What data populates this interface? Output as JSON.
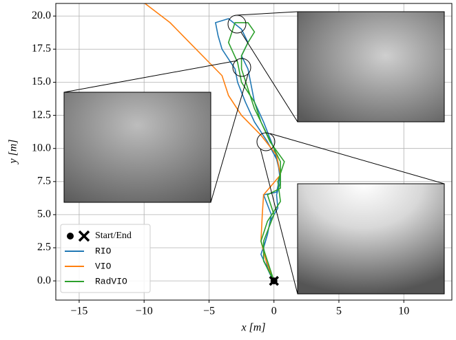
{
  "chart_data": {
    "type": "line",
    "xlabel": "x [m]",
    "ylabel": "y [m]",
    "xlim": [
      -16.8,
      13.7
    ],
    "ylim": [
      -1.45,
      20.95
    ],
    "xticks": [
      {
        "value": -15,
        "label": "−15"
      },
      {
        "value": -10,
        "label": "−10"
      },
      {
        "value": -5,
        "label": "−5"
      },
      0,
      5,
      10
    ],
    "yticks": [
      {
        "value": 0,
        "label": "0.0"
      },
      2.5,
      {
        "value": 5,
        "label": "5.0"
      },
      7.5,
      {
        "value": 10,
        "label": "10.0"
      },
      12.5,
      {
        "value": 15,
        "label": "15.0"
      },
      17.5,
      {
        "value": 20,
        "label": "20.0"
      }
    ],
    "grid": true,
    "legend": "lower left",
    "start_end": {
      "name": "Start/End",
      "x": 0,
      "y": 0
    },
    "series": [
      {
        "name": "RIO",
        "color": "#1f77b4",
        "x": [
          0,
          -0.5,
          -0.8,
          -0.5,
          -0.3,
          0.3,
          0.2,
          0.5,
          0.3,
          -0.5,
          -1.5,
          -2.2,
          -2.8,
          -3,
          -4,
          -4.3,
          -4.5,
          -3.5,
          -2.5,
          -2,
          -2.5,
          -2,
          -1.8,
          -1.5,
          -0.8,
          0,
          0.5,
          0.2,
          -0.8,
          -0.2,
          -0.5,
          -1,
          -0.3,
          0
        ],
        "values": [
          0,
          1,
          2.5,
          3.5,
          4.5,
          5.5,
          6.5,
          7.5,
          9,
          10.5,
          12,
          13.5,
          15,
          16,
          17.5,
          18.5,
          19.5,
          19.8,
          19,
          18,
          17,
          16,
          15,
          13.5,
          12,
          10,
          8,
          6.7,
          6.5,
          5,
          3.5,
          2,
          0.5,
          0
        ]
      },
      {
        "name": "VIO",
        "color": "#ff7f0e",
        "x": [
          0,
          -0.6,
          -1,
          -0.9,
          -0.8,
          0.5,
          0.2,
          -1,
          -2.5,
          -3.5,
          -4,
          -5,
          -6.5,
          -8,
          -10
        ],
        "values": [
          0,
          1.5,
          3,
          5,
          6.5,
          8,
          9.5,
          11,
          12.5,
          14,
          15.5,
          16.5,
          18,
          19.5,
          21
        ]
      },
      {
        "name": "RadVIO",
        "color": "#2ca02c",
        "x": [
          0,
          -0.5,
          -1,
          -0.5,
          0.5,
          0.3,
          0.8,
          -0.3,
          -1,
          -1.5,
          -2.5,
          -2.8,
          -3.5,
          -3,
          -2,
          -1.5,
          -2,
          -2.5,
          -2.5,
          -2,
          -1.5,
          -0.5,
          0.5,
          0.5,
          -0.5,
          0,
          -0.8,
          -0.8,
          0
        ],
        "values": [
          0,
          1.5,
          3,
          4.5,
          6,
          7.5,
          9,
          10.5,
          12,
          13.5,
          15,
          16.5,
          18,
          19.5,
          19.5,
          18.8,
          18,
          17,
          16,
          14.5,
          13,
          11,
          9,
          7,
          6.5,
          5,
          3,
          1.5,
          0
        ]
      }
    ]
  }
}
